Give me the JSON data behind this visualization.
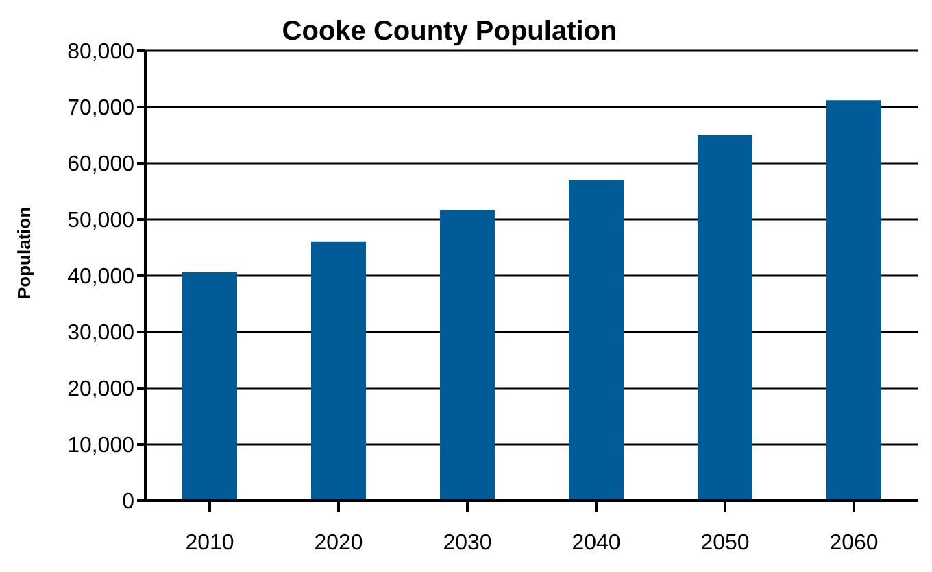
{
  "chart_data": {
    "type": "bar",
    "title": "Cooke County Population",
    "ylabel": "Population",
    "categories": [
      "2010",
      "2020",
      "2030",
      "2040",
      "2050",
      "2060"
    ],
    "values": [
      40600,
      46000,
      51700,
      57000,
      65000,
      71200
    ],
    "color": "#005b96",
    "ylim": [
      0,
      80000
    ],
    "yticks": [
      0,
      {
        "value": 10000,
        "label": "10,000"
      },
      {
        "value": 20000,
        "label": "20,000"
      },
      {
        "value": 30000,
        "label": "30,000"
      },
      {
        "value": 40000,
        "label": "40,000"
      },
      {
        "value": 50000,
        "label": "50,000"
      },
      {
        "value": 60000,
        "label": "60,000"
      },
      {
        "value": 70000,
        "label": "70,000"
      },
      {
        "value": 80000,
        "label": "80,000"
      }
    ],
    "grid": "y"
  }
}
